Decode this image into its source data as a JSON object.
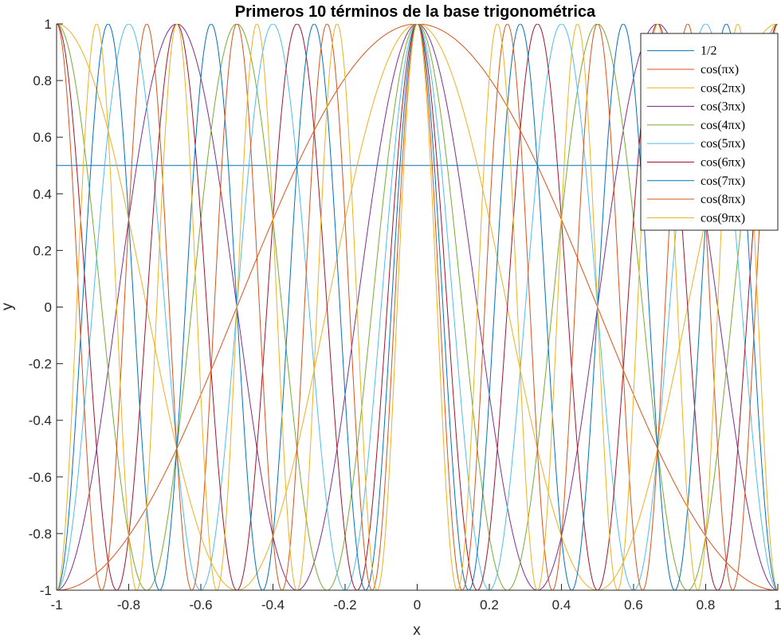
{
  "chart_data": {
    "type": "line",
    "title": "Primeros 10 términos de la base trigonométrica",
    "xlabel": "x",
    "ylabel": "y",
    "xlim": [
      -1,
      1
    ],
    "ylim": [
      -1,
      1
    ],
    "xticks": [
      -1,
      -0.8,
      -0.6,
      -0.4,
      -0.2,
      0,
      0.2,
      0.4,
      0.6,
      0.8,
      1
    ],
    "yticks": [
      -1,
      -0.8,
      -0.6,
      -0.4,
      -0.2,
      0,
      0.2,
      0.4,
      0.6,
      0.8,
      1
    ],
    "xtick_labels": [
      "-1",
      "-0.8",
      "-0.6",
      "-0.4",
      "-0.2",
      "0",
      "0.2",
      "0.4",
      "0.6",
      "0.8",
      "1"
    ],
    "ytick_labels": [
      "-1",
      "-0.8",
      "-0.6",
      "-0.4",
      "-0.2",
      "0",
      "0.2",
      "0.4",
      "0.6",
      "0.8",
      "1"
    ],
    "grid": false,
    "legend_position": "top-right",
    "series": [
      {
        "name": "1/2",
        "function": "constant",
        "value": 0.5,
        "color": "#0072BD"
      },
      {
        "name": "cos(πx)",
        "function": "cos",
        "k": 1,
        "color": "#D95319"
      },
      {
        "name": "cos(2πx)",
        "function": "cos",
        "k": 2,
        "color": "#EDB120"
      },
      {
        "name": "cos(3πx)",
        "function": "cos",
        "k": 3,
        "color": "#7E2F8E"
      },
      {
        "name": "cos(4πx)",
        "function": "cos",
        "k": 4,
        "color": "#77AC30"
      },
      {
        "name": "cos(5πx)",
        "function": "cos",
        "k": 5,
        "color": "#4DBEEE"
      },
      {
        "name": "cos(6πx)",
        "function": "cos",
        "k": 6,
        "color": "#A2142F"
      },
      {
        "name": "cos(7πx)",
        "function": "cos",
        "k": 7,
        "color": "#0072BD"
      },
      {
        "name": "cos(8πx)",
        "function": "cos",
        "k": 8,
        "color": "#D95319"
      },
      {
        "name": "cos(9πx)",
        "function": "cos",
        "k": 9,
        "color": "#EDB120"
      }
    ]
  }
}
